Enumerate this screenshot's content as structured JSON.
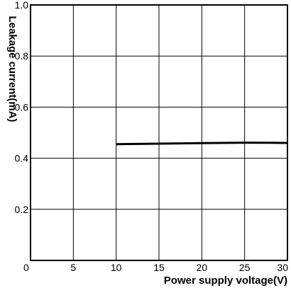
{
  "chart_data": {
    "type": "line",
    "xlabel": "Power supply voltage(V)",
    "ylabel": "Leakage current(mA)",
    "xlim": [
      0,
      30
    ],
    "ylim": [
      0,
      1.0
    ],
    "xticks": [
      0,
      5,
      10,
      15,
      20,
      25,
      30
    ],
    "yticks": [
      0.2,
      0.4,
      0.6,
      0.8,
      1.0
    ],
    "xtick_labels": [
      "0",
      "5",
      "10",
      "15",
      "20",
      "25",
      "30"
    ],
    "ytick_labels": [
      "0.2",
      "0.4",
      "0.6",
      "0.8",
      "1.0"
    ],
    "grid": true,
    "series": [
      {
        "x": [
          10,
          15,
          20,
          25,
          30
        ],
        "y": [
          0.455,
          0.457,
          0.459,
          0.461,
          0.46
        ]
      }
    ]
  }
}
